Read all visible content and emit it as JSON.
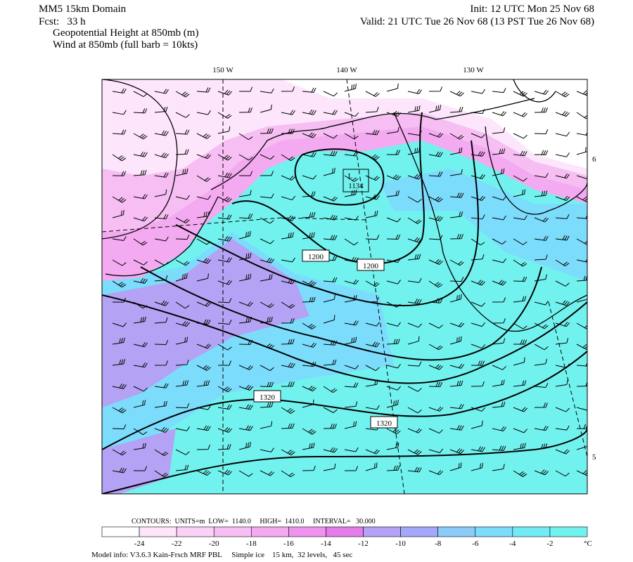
{
  "header": {
    "title": "MM5 15km Domain",
    "forecast": "Fcst:   33 h",
    "field1": "Geopotential Height at 850mb (m)",
    "field2": "Wind at 850mb (full barb = 10kts)",
    "init": "Init: 12 UTC Mon 25 Nov 68",
    "valid": "Valid: 21 UTC Tue 26 Nov 68 (13 PST Tue 26 Nov 68)"
  },
  "map": {
    "longitude_labels": [
      "150 W",
      "140 W",
      "130 W"
    ],
    "latitude_labels": [
      "6",
      "5"
    ],
    "contour_labels": [
      "1200",
      "1200",
      "1320",
      "1320"
    ],
    "low": {
      "label": "L",
      "value": "1134"
    }
  },
  "legend": {
    "contours": "CONTOURS:  UNITS=m  LOW=  1140.0     HIGH=  1410.0     INTERVAL=   30.000",
    "colorbar": {
      "ticks": [
        -24,
        -22,
        -20,
        -18,
        -16,
        -14,
        -12,
        -10,
        -8,
        -6,
        -4,
        -2
      ],
      "unit": "°C",
      "colors": [
        "#ffffff",
        "#fde6fb",
        "#fad2f7",
        "#f6bef3",
        "#f3aaf0",
        "#ef94ee",
        "#e47ce9",
        "#b4a2f4",
        "#a4a8fa",
        "#8ccaf8",
        "#7cdcfc",
        "#72ebf6",
        "#72f2ee"
      ]
    }
  },
  "footer": {
    "model_info": "Model info: V3.6.3 Kain-Frsch MRF PBL     Simple ice    15 km,  32 levels,   45 sec"
  }
}
